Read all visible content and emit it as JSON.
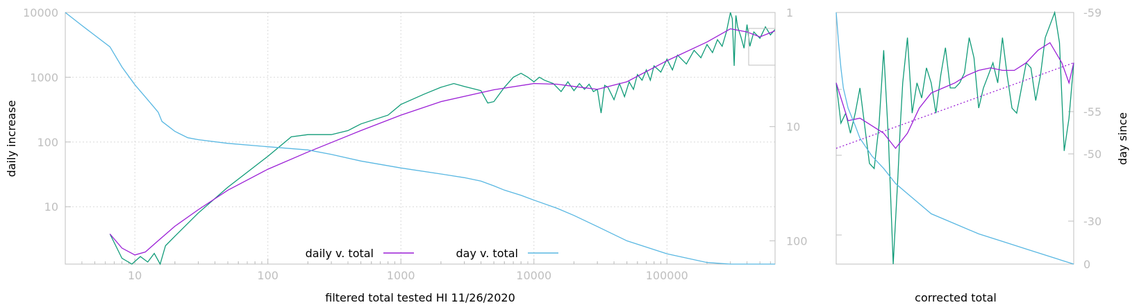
{
  "chart_data": [
    {
      "type": "line",
      "xlabel": "filtered total tested HI 11/26/2020",
      "ylabel": "daily increase",
      "y2label": "",
      "xscale": "log",
      "yscale": "log",
      "y2scale": "log-reversed",
      "xlim": [
        3,
        650000
      ],
      "ylim": [
        1.3,
        10000
      ],
      "y2lim": [
        1,
        160
      ],
      "grid": true,
      "legend_position": "bottom-center",
      "x_ticks": [
        "10",
        "100",
        "1000",
        "10000",
        "100000"
      ],
      "x_tick_values": [
        10,
        100,
        1000,
        10000,
        100000
      ],
      "y_ticks": [
        "10000",
        "1000",
        "100",
        "10"
      ],
      "y_tick_values": [
        10000,
        1000,
        100,
        10
      ],
      "y2_ticks": [
        "1",
        "10",
        "100"
      ],
      "y2_tick_values": [
        1,
        10,
        100
      ],
      "colors": {
        "daily_raw": "#109b78",
        "daily_smooth": "#9b1fd6",
        "day": "#58b7e2",
        "frame": "#bfbfbf"
      },
      "series": [
        {
          "name": "daily v. total",
          "axis": "y",
          "color": "#9b1fd6",
          "x": [
            6.5,
            8,
            10,
            12,
            15,
            20,
            30,
            50,
            100,
            200,
            500,
            1000,
            2000,
            5000,
            10000,
            15000,
            20000,
            30000,
            50000,
            100000,
            200000,
            300000,
            400000,
            500000,
            650000
          ],
          "y": [
            3.8,
            2.3,
            1.8,
            2.0,
            3.0,
            5.0,
            9.0,
            18,
            38,
            70,
            150,
            260,
            420,
            640,
            800,
            780,
            720,
            650,
            850,
            1800,
            3500,
            5600,
            5000,
            4200,
            5200
          ]
        },
        {
          "name": "",
          "axis": "y",
          "color": "#109b78",
          "x": [
            6.5,
            8,
            9.5,
            11,
            12.5,
            14,
            15.5,
            17,
            20,
            30,
            50,
            100,
            150,
            200,
            300,
            400,
            500,
            800,
            1000,
            1500,
            2000,
            2500,
            3000,
            4000,
            4500,
            5000,
            6000,
            7000,
            8000,
            9000,
            10000,
            11000,
            12000,
            14000,
            16000,
            18000,
            20000,
            22000,
            24000,
            26000,
            28000,
            30000,
            32000,
            34000,
            36000,
            40000,
            44000,
            48000,
            52000,
            56000,
            60000,
            65000,
            70000,
            75000,
            80000,
            90000,
            100000,
            110000,
            120000,
            140000,
            160000,
            180000,
            200000,
            220000,
            240000,
            260000,
            280000,
            300000,
            310000,
            320000,
            330000,
            340000,
            360000,
            380000,
            400000,
            420000,
            450000,
            500000,
            550000,
            600000,
            650000
          ],
          "y": [
            3.8,
            1.6,
            1.3,
            1.7,
            1.4,
            1.9,
            1.3,
            2.5,
            3.5,
            8,
            20,
            60,
            120,
            130,
            130,
            150,
            190,
            260,
            380,
            550,
            700,
            800,
            720,
            620,
            400,
            420,
            700,
            1000,
            1150,
            1000,
            850,
            1000,
            900,
            800,
            600,
            850,
            620,
            800,
            650,
            780,
            600,
            650,
            280,
            750,
            700,
            450,
            800,
            500,
            850,
            650,
            1100,
            900,
            1300,
            900,
            1500,
            1200,
            1900,
            1300,
            2200,
            1600,
            2600,
            2000,
            3200,
            2400,
            3800,
            3000,
            5000,
            11000,
            8000,
            1500,
            9000,
            6000,
            4200,
            2800,
            6500,
            3000,
            5000,
            4000,
            6000,
            4500,
            5500
          ]
        },
        {
          "name": "day v. total",
          "axis": "y2",
          "color": "#58b7e2",
          "x": [
            3,
            4,
            6.5,
            8,
            10,
            12,
            14,
            15,
            16,
            18,
            20,
            25,
            30,
            50,
            100,
            200,
            300,
            500,
            1000,
            2000,
            3000,
            4000,
            5000,
            6000,
            8000,
            10000,
            15000,
            20000,
            30000,
            50000,
            100000,
            200000,
            300000,
            400000,
            500000,
            650000
          ],
          "y2": [
            1,
            1.3,
            2.0,
            3.0,
            4.3,
            5.5,
            6.8,
            7.5,
            9,
            10,
            11,
            12.5,
            13,
            14,
            15,
            16,
            17.5,
            20,
            23,
            26,
            28,
            30,
            33,
            36,
            40,
            44,
            52,
            60,
            75,
            100,
            130,
            155,
            165,
            170,
            180,
            200
          ]
        }
      ]
    },
    {
      "type": "line",
      "xlabel": "corrected total",
      "ylabel": "",
      "y2label": "day since",
      "y_ticks": [],
      "y2_ticks": [
        "-59",
        "-55",
        "-50",
        "-30",
        "0"
      ],
      "y2_tick_values": [
        -59,
        -55,
        -50,
        -30,
        0
      ],
      "grid": false,
      "series": [
        {
          "name": "",
          "color": "#109b78",
          "t": [
            0,
            0.02,
            0.04,
            0.06,
            0.08,
            0.1,
            0.12,
            0.14,
            0.16,
            0.18,
            0.2,
            0.22,
            0.24,
            0.26,
            0.27,
            0.28,
            0.3,
            0.32,
            0.34,
            0.36,
            0.38,
            0.4,
            0.42,
            0.44,
            0.46,
            0.48,
            0.5,
            0.52,
            0.54,
            0.56,
            0.58,
            0.6,
            0.62,
            0.64,
            0.66,
            0.68,
            0.7,
            0.72,
            0.74,
            0.76,
            0.78,
            0.8,
            0.82,
            0.84,
            0.86,
            0.88,
            0.9,
            0.92,
            0.94,
            0.96,
            0.98,
            1.0
          ],
          "v": [
            0.72,
            0.56,
            0.6,
            0.52,
            0.6,
            0.7,
            0.55,
            0.4,
            0.38,
            0.55,
            0.85,
            0.5,
            0.0,
            0.35,
            0.55,
            0.72,
            0.9,
            0.6,
            0.72,
            0.66,
            0.78,
            0.72,
            0.6,
            0.75,
            0.86,
            0.7,
            0.7,
            0.72,
            0.76,
            0.9,
            0.82,
            0.62,
            0.7,
            0.75,
            0.8,
            0.72,
            0.9,
            0.75,
            0.62,
            0.6,
            0.7,
            0.8,
            0.78,
            0.65,
            0.75,
            0.9,
            0.95,
            1.0,
            0.88,
            0.45,
            0.58,
            0.8
          ]
        },
        {
          "name": "",
          "color": "#9b1fd6",
          "t": [
            0,
            0.05,
            0.1,
            0.15,
            0.2,
            0.25,
            0.3,
            0.35,
            0.4,
            0.45,
            0.5,
            0.55,
            0.6,
            0.65,
            0.7,
            0.75,
            0.8,
            0.85,
            0.9,
            0.95,
            0.98,
            1.0
          ],
          "v": [
            0.72,
            0.57,
            0.58,
            0.55,
            0.52,
            0.46,
            0.52,
            0.62,
            0.68,
            0.7,
            0.72,
            0.75,
            0.77,
            0.78,
            0.77,
            0.77,
            0.8,
            0.85,
            0.88,
            0.8,
            0.72,
            0.8
          ]
        },
        {
          "name": "",
          "color": "#9b1fd6",
          "dashed": true,
          "t": [
            0,
            1
          ],
          "v": [
            0.46,
            0.8
          ]
        },
        {
          "name": "",
          "color": "#58b7e2",
          "t": [
            0,
            0.01,
            0.02,
            0.03,
            0.05,
            0.08,
            0.1,
            0.15,
            0.2,
            0.25,
            0.3,
            0.35,
            0.4,
            0.5,
            0.6,
            0.7,
            0.8,
            0.9,
            0.95,
            1.0
          ],
          "v": [
            1.0,
            0.88,
            0.78,
            0.7,
            0.62,
            0.55,
            0.5,
            0.43,
            0.38,
            0.32,
            0.28,
            0.24,
            0.2,
            0.16,
            0.12,
            0.09,
            0.06,
            0.03,
            0.015,
            0.0
          ]
        }
      ]
    }
  ]
}
